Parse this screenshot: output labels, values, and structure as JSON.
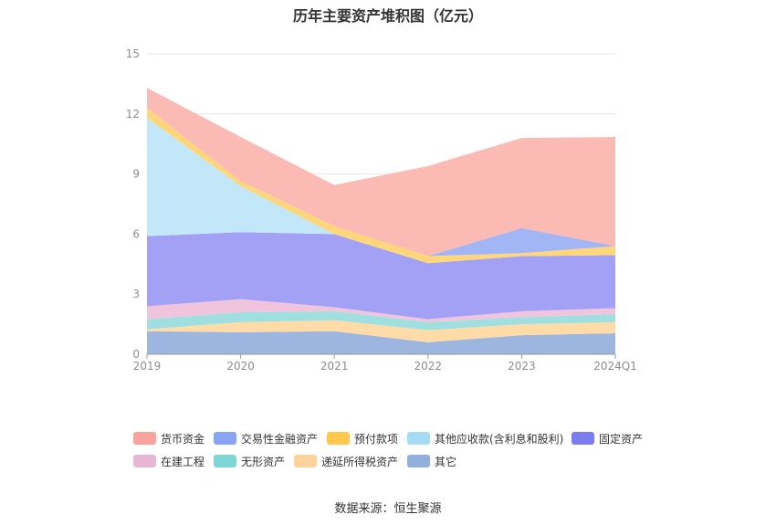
{
  "chart_data": {
    "type": "area",
    "stacked": true,
    "title": "历年主要资产堆积图（亿元）",
    "x": [
      "2019",
      "2020",
      "2021",
      "2022",
      "2023",
      "2024Q1"
    ],
    "ylim": [
      0,
      15
    ],
    "yticks": [
      0,
      3,
      6,
      9,
      12,
      15
    ],
    "grid": true,
    "legend_position": "bottom",
    "series": [
      {
        "name": "其它",
        "color": "#9db6e0",
        "values": [
          1.15,
          1.1,
          1.15,
          0.6,
          0.95,
          1.05
        ]
      },
      {
        "name": "递延所得税资产",
        "color": "#ffdca7",
        "values": [
          0.1,
          0.5,
          0.55,
          0.6,
          0.55,
          0.55
        ]
      },
      {
        "name": "无形资产",
        "color": "#9fdfdf",
        "values": [
          0.5,
          0.5,
          0.45,
          0.4,
          0.35,
          0.4
        ]
      },
      {
        "name": "在建工程",
        "color": "#f0c4dc",
        "values": [
          0.65,
          0.65,
          0.2,
          0.15,
          0.3,
          0.3
        ]
      },
      {
        "name": "固定资产",
        "color": "#a3a1f6",
        "values": [
          3.5,
          3.35,
          3.65,
          2.8,
          2.75,
          2.65
        ]
      },
      {
        "name": "其他应收款(含利息和股利)",
        "color": "#c1e7f8",
        "values": [
          5.9,
          2.3,
          0.0,
          0.0,
          0.0,
          0.0
        ]
      },
      {
        "name": "预付款项",
        "color": "#ffd77a",
        "values": [
          0.5,
          0.25,
          0.4,
          0.35,
          0.15,
          0.45
        ]
      },
      {
        "name": "交易性金融资产",
        "color": "#a2b6f6",
        "values": [
          0.0,
          0.0,
          0.0,
          0.0,
          1.25,
          0.0
        ]
      },
      {
        "name": "货币资金",
        "color": "#fbbbb4",
        "values": [
          1.0,
          2.2,
          2.05,
          4.5,
          4.5,
          5.45
        ]
      }
    ],
    "legend": [
      {
        "name": "货币资金",
        "color": "#f8a39b"
      },
      {
        "name": "交易性金融资产",
        "color": "#8aa4f4"
      },
      {
        "name": "预付款项",
        "color": "#fec84c"
      },
      {
        "name": "其他应收款(含利息和股利)",
        "color": "#a5dcf5"
      },
      {
        "name": "固定资产",
        "color": "#7b7cf0"
      },
      {
        "name": "在建工程",
        "color": "#e9b7d6"
      },
      {
        "name": "无形资产",
        "color": "#7fd6d6"
      },
      {
        "name": "递延所得税资产",
        "color": "#ffd39b"
      },
      {
        "name": "其它",
        "color": "#93afdc"
      }
    ]
  },
  "source": "数据来源：恒生聚源"
}
